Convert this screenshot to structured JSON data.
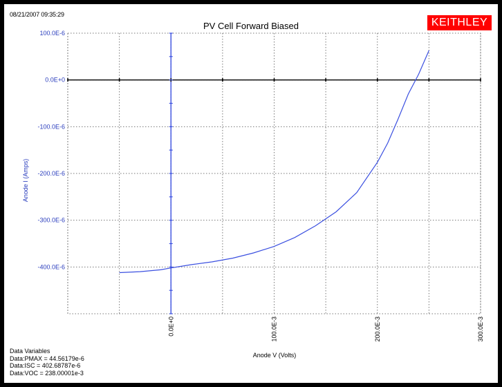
{
  "window": {
    "timestamp": "08/21/2007 09:35:29",
    "logo": "KEITHLEY"
  },
  "data_variables": {
    "heading": "Data Variables",
    "lines": [
      "Data:PMAX = 44.56179e-6",
      "Data:ISC = 402.68787e-6",
      "Data:VOC = 238.00001e-3"
    ]
  },
  "colors": {
    "curve": "#3a4fe0",
    "logo_bg": "#ff0000",
    "axis_labels": "#2a3dbd"
  },
  "chart_data": {
    "type": "line",
    "title": "PV Cell Forward Biased",
    "xlabel": "Anode V (Volts)",
    "ylabel": "Anode I (Amps)",
    "xlim": [
      -0.1,
      0.3
    ],
    "ylim": [
      -0.0005,
      0.0001
    ],
    "x_ticks": [
      {
        "value": 0.0,
        "label": "0.0E+0"
      },
      {
        "value": 0.1,
        "label": "100.0E-3"
      },
      {
        "value": 0.2,
        "label": "200.0E-3"
      },
      {
        "value": 0.3,
        "label": "300.0E-3"
      }
    ],
    "y_ticks": [
      {
        "value": 0.0001,
        "label": "100.0E-6"
      },
      {
        "value": 0.0,
        "label": "0.0E+0"
      },
      {
        "value": -0.0001,
        "label": "-100.0E-6"
      },
      {
        "value": -0.0002,
        "label": "-200.0E-6"
      },
      {
        "value": -0.0003,
        "label": "-300.0E-6"
      },
      {
        "value": -0.0004,
        "label": "-400.0E-6"
      }
    ],
    "grid": true,
    "series": [
      {
        "x": [
          -0.05,
          -0.03,
          -0.01,
          0.0,
          0.02,
          0.04,
          0.06,
          0.08,
          0.1,
          0.12,
          0.14,
          0.16,
          0.18,
          0.2,
          0.21,
          0.22,
          0.23,
          0.24,
          0.25
        ],
        "y": [
          -0.000412,
          -0.00041,
          -0.000406,
          -0.000402,
          -0.000395,
          -0.000389,
          -0.000381,
          -0.00037,
          -0.000356,
          -0.000337,
          -0.000312,
          -0.000282,
          -0.000241,
          -0.000176,
          -0.000135,
          -8.4e-05,
          -3e-05,
          1.2e-05,
          6.3e-05
        ]
      }
    ]
  }
}
